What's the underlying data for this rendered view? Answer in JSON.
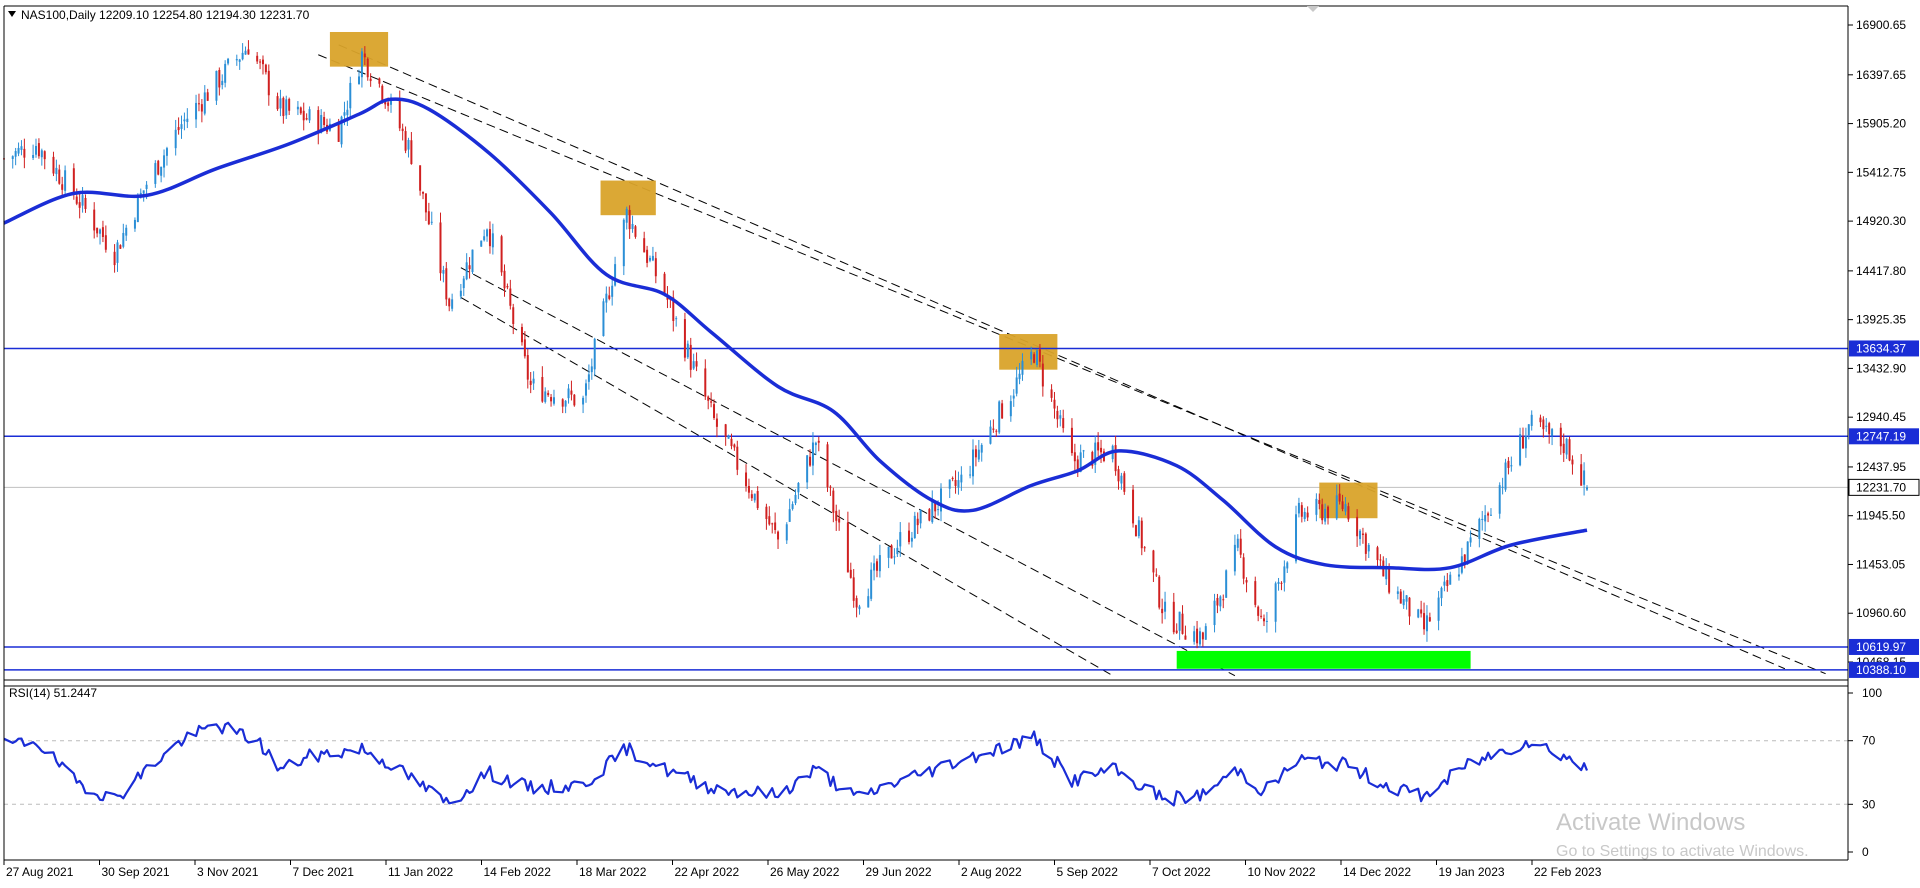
{
  "header": {
    "symbol_info": "NAS100,Daily  12209.10 12254.80 12194.30 12231.70",
    "rsi_info": "RSI(14) 51.2447"
  },
  "watermark": {
    "title": "Activate Windows",
    "subtitle": "Go to Settings to activate Windows."
  },
  "colors": {
    "bull_candle": "#2b8fd6",
    "bear_candle": "#d02020",
    "moving_average": "#1a2dd6",
    "rsi_line": "#1a2dd6",
    "horizontal_levels": "#1a2dd6",
    "level_label_bg": "#1a2dd6",
    "highlight_box": "#d9a32a",
    "support_zone": "#00ff00",
    "channel_lines": "#000000"
  },
  "chart_data": [
    {
      "type": "candlestick",
      "symbol": "NAS100",
      "timeframe": "Daily",
      "price_axis": {
        "ticks": [
          "16900.65",
          "16397.65",
          "15905.20",
          "15412.75",
          "14920.30",
          "14417.80",
          "13925.35",
          "13432.90",
          "12940.45",
          "12437.95",
          "11945.50",
          "11453.05",
          "10960.60",
          "10468.15"
        ],
        "range": [
          10330,
          17030
        ]
      },
      "date_axis": {
        "labels": [
          "27 Aug 2021",
          "30 Sep 2021",
          "3 Nov 2021",
          "7 Dec 2021",
          "11 Jan 2022",
          "14 Feb 2022",
          "18 Mar 2022",
          "22 Apr 2022",
          "26 May 2022",
          "29 Jun 2022",
          "2 Aug 2022",
          "5 Sep 2022",
          "7 Oct 2022",
          "10 Nov 2022",
          "14 Dec 2022",
          "19 Jan 2023",
          "22 Feb 2023"
        ]
      },
      "ohlc_last": {
        "open": 12209.1,
        "high": 12254.8,
        "low": 12194.3,
        "close": 12231.7
      },
      "current_price": "12231.70",
      "price_path": [
        {
          "date": "2021-08-27",
          "close": 15550
        },
        {
          "date": "2021-09-07",
          "close": 15700
        },
        {
          "date": "2021-09-20",
          "close": 15200
        },
        {
          "date": "2021-10-04",
          "close": 14600
        },
        {
          "date": "2021-10-15",
          "close": 15300
        },
        {
          "date": "2021-10-27",
          "close": 15900
        },
        {
          "date": "2021-11-19",
          "close": 16700
        },
        {
          "date": "2021-11-30",
          "close": 16050
        },
        {
          "date": "2021-12-20",
          "close": 15850
        },
        {
          "date": "2021-12-28",
          "close": 16600
        },
        {
          "date": "2022-01-05",
          "close": 16200
        },
        {
          "date": "2022-01-14",
          "close": 15600
        },
        {
          "date": "2022-01-27",
          "close": 14100
        },
        {
          "date": "2022-02-09",
          "close": 14900
        },
        {
          "date": "2022-02-24",
          "close": 13250
        },
        {
          "date": "2022-03-14",
          "close": 13100
        },
        {
          "date": "2022-03-29",
          "close": 15000
        },
        {
          "date": "2022-04-11",
          "close": 14200
        },
        {
          "date": "2022-04-28",
          "close": 12900
        },
        {
          "date": "2022-05-20",
          "close": 11700
        },
        {
          "date": "2022-06-02",
          "close": 12700
        },
        {
          "date": "2022-06-16",
          "close": 11100
        },
        {
          "date": "2022-07-01",
          "close": 11700
        },
        {
          "date": "2022-07-22",
          "close": 12300
        },
        {
          "date": "2022-08-16",
          "close": 13600
        },
        {
          "date": "2022-08-29",
          "close": 12500
        },
        {
          "date": "2022-09-12",
          "close": 12600
        },
        {
          "date": "2022-09-30",
          "close": 10950
        },
        {
          "date": "2022-10-13",
          "close": 10700
        },
        {
          "date": "2022-10-25",
          "close": 11600
        },
        {
          "date": "2022-11-03",
          "close": 10800
        },
        {
          "date": "2022-11-15",
          "close": 11950
        },
        {
          "date": "2022-12-01",
          "close": 12050
        },
        {
          "date": "2022-12-15",
          "close": 11300
        },
        {
          "date": "2022-12-28",
          "close": 10800
        },
        {
          "date": "2023-01-12",
          "close": 11600
        },
        {
          "date": "2023-02-02",
          "close": 12850
        },
        {
          "date": "2023-02-15",
          "close": 12650
        },
        {
          "date": "2023-02-22",
          "close": 12231.7
        }
      ],
      "moving_average": [
        {
          "date": "2021-08-27",
          "value": 14900
        },
        {
          "date": "2021-09-20",
          "value": 15200
        },
        {
          "date": "2021-10-15",
          "value": 15180
        },
        {
          "date": "2021-11-08",
          "value": 15450
        },
        {
          "date": "2021-12-03",
          "value": 15700
        },
        {
          "date": "2021-12-27",
          "value": 16000
        },
        {
          "date": "2022-01-07",
          "value": 16150
        },
        {
          "date": "2022-01-20",
          "value": 16050
        },
        {
          "date": "2022-02-10",
          "value": 15600
        },
        {
          "date": "2022-03-03",
          "value": 15000
        },
        {
          "date": "2022-03-22",
          "value": 14380
        },
        {
          "date": "2022-04-11",
          "value": 14180
        },
        {
          "date": "2022-04-27",
          "value": 13800
        },
        {
          "date": "2022-05-20",
          "value": 13250
        },
        {
          "date": "2022-06-08",
          "value": 13000
        },
        {
          "date": "2022-06-24",
          "value": 12500
        },
        {
          "date": "2022-07-12",
          "value": 12100
        },
        {
          "date": "2022-07-26",
          "value": 12000
        },
        {
          "date": "2022-08-15",
          "value": 12250
        },
        {
          "date": "2022-08-31",
          "value": 12400
        },
        {
          "date": "2022-09-14",
          "value": 12600
        },
        {
          "date": "2022-10-04",
          "value": 12450
        },
        {
          "date": "2022-10-20",
          "value": 12100
        },
        {
          "date": "2022-11-07",
          "value": 11630
        },
        {
          "date": "2022-11-24",
          "value": 11450
        },
        {
          "date": "2022-12-16",
          "value": 11420
        },
        {
          "date": "2023-01-06",
          "value": 11420
        },
        {
          "date": "2023-01-27",
          "value": 11650
        },
        {
          "date": "2023-02-22",
          "value": 11800
        }
      ],
      "horizontal_levels": [
        {
          "price": 13634.37,
          "label": "13634.37"
        },
        {
          "price": 12747.19,
          "label": "12747.19"
        },
        {
          "price": 10619.97,
          "label": "10619.97"
        },
        {
          "price": 10388.1,
          "label": "10388.10"
        }
      ],
      "upper_channel": [
        {
          "start": {
            "date": "2021-12-20",
            "price": 16700
          },
          "end": {
            "date": "2023-05-01",
            "price": 10400
          }
        },
        {
          "start": {
            "date": "2021-12-13",
            "price": 16600
          },
          "end": {
            "date": "2023-05-15",
            "price": 10350
          }
        }
      ],
      "lower_channel": [
        {
          "start": {
            "date": "2022-01-31",
            "price": 14450
          },
          "end": {
            "date": "2022-10-24",
            "price": 10330
          }
        },
        {
          "start": {
            "date": "2022-01-31",
            "price": 14150
          },
          "end": {
            "date": "2022-09-12",
            "price": 10330
          }
        }
      ],
      "highlight_boxes": [
        {
          "start": "2021-12-17",
          "end": "2022-01-06",
          "low": 16480,
          "high": 16830
        },
        {
          "start": "2022-03-20",
          "end": "2022-04-08",
          "low": 14980,
          "high": 15330
        },
        {
          "start": "2022-08-04",
          "end": "2022-08-24",
          "low": 13420,
          "high": 13780
        },
        {
          "start": "2022-11-22",
          "end": "2022-12-12",
          "low": 11920,
          "high": 12280
        }
      ],
      "support_zone": {
        "start": "2022-10-04",
        "end": "2023-01-13",
        "low": 10400,
        "high": 10580
      }
    },
    {
      "type": "line",
      "indicator": "RSI(14)",
      "value": 51.2447,
      "y_ticks": [
        "100",
        "70",
        "30",
        "0"
      ],
      "levels": [
        70,
        30
      ],
      "ylim": [
        0,
        100
      ],
      "series": [
        {
          "date": "2021-08-27",
          "value": 67
        },
        {
          "date": "2021-09-07",
          "value": 70
        },
        {
          "date": "2021-09-20",
          "value": 45
        },
        {
          "date": "2021-10-04",
          "value": 33
        },
        {
          "date": "2021-10-15",
          "value": 52
        },
        {
          "date": "2021-10-27",
          "value": 70
        },
        {
          "date": "2021-11-08",
          "value": 80
        },
        {
          "date": "2021-11-22",
          "value": 70
        },
        {
          "date": "2021-11-30",
          "value": 52
        },
        {
          "date": "2021-12-10",
          "value": 60
        },
        {
          "date": "2021-12-28",
          "value": 65
        },
        {
          "date": "2022-01-07",
          "value": 55
        },
        {
          "date": "2022-01-27",
          "value": 30
        },
        {
          "date": "2022-02-09",
          "value": 50
        },
        {
          "date": "2022-02-24",
          "value": 40
        },
        {
          "date": "2022-03-14",
          "value": 42
        },
        {
          "date": "2022-03-29",
          "value": 65
        },
        {
          "date": "2022-04-11",
          "value": 52
        },
        {
          "date": "2022-04-28",
          "value": 40
        },
        {
          "date": "2022-05-20",
          "value": 36
        },
        {
          "date": "2022-06-02",
          "value": 52
        },
        {
          "date": "2022-06-16",
          "value": 34
        },
        {
          "date": "2022-07-01",
          "value": 45
        },
        {
          "date": "2022-07-22",
          "value": 58
        },
        {
          "date": "2022-08-16",
          "value": 72
        },
        {
          "date": "2022-08-29",
          "value": 45
        },
        {
          "date": "2022-09-12",
          "value": 52
        },
        {
          "date": "2022-09-30",
          "value": 33
        },
        {
          "date": "2022-10-13",
          "value": 36
        },
        {
          "date": "2022-10-25",
          "value": 52
        },
        {
          "date": "2022-11-03",
          "value": 38
        },
        {
          "date": "2022-11-15",
          "value": 58
        },
        {
          "date": "2022-12-01",
          "value": 55
        },
        {
          "date": "2022-12-15",
          "value": 42
        },
        {
          "date": "2022-12-28",
          "value": 35
        },
        {
          "date": "2023-01-12",
          "value": 55
        },
        {
          "date": "2023-02-02",
          "value": 70
        },
        {
          "date": "2023-02-15",
          "value": 60
        },
        {
          "date": "2023-02-22",
          "value": 51.2
        }
      ]
    }
  ]
}
